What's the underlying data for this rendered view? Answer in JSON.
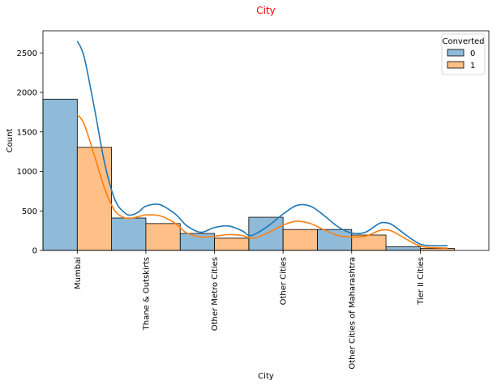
{
  "chart_data": {
    "type": "bar",
    "title": "City",
    "title_color": "#ff0000",
    "xlabel": "City",
    "ylabel": "Count",
    "categories": [
      "Mumbai",
      "Thane & Outskirts",
      "Other Metro Cities",
      "Other Cities",
      "Other Cities of Maharashtra",
      "Tier II Cities"
    ],
    "ylim": [
      0,
      2780
    ],
    "yticks": [
      0,
      500,
      1000,
      1500,
      2000,
      2500
    ],
    "series": [
      {
        "name": "0",
        "color": "#1f77b4",
        "fill": "#8fbbd9",
        "values": [
          1915,
          410,
          215,
          420,
          265,
          45
        ]
      },
      {
        "name": "1",
        "color": "#ff7f0e",
        "fill": "#ffbf86",
        "values": [
          1305,
          340,
          155,
          265,
          195,
          25
        ]
      }
    ],
    "kde": [
      {
        "series": "0",
        "x": [
          0.0,
          0.1,
          0.25,
          0.4,
          0.55,
          0.7,
          0.8,
          0.9,
          1.0,
          1.2,
          1.4,
          1.5,
          1.6,
          1.8,
          2.0,
          2.2,
          2.4,
          2.5,
          2.6,
          2.8,
          3.0,
          3.2,
          3.4,
          3.6,
          3.8,
          4.0,
          4.2,
          4.4,
          4.5,
          4.6,
          4.8,
          5.0,
          5.2,
          5.4
        ],
        "y": [
          2650,
          2450,
          1800,
          1100,
          640,
          470,
          450,
          490,
          560,
          580,
          480,
          400,
          310,
          230,
          290,
          310,
          250,
          190,
          210,
          320,
          460,
          570,
          560,
          440,
          300,
          220,
          230,
          340,
          350,
          320,
          190,
          80,
          60,
          60
        ]
      },
      {
        "series": "1",
        "x": [
          0.0,
          0.1,
          0.25,
          0.4,
          0.55,
          0.7,
          0.8,
          0.9,
          1.0,
          1.2,
          1.4,
          1.5,
          1.6,
          1.8,
          2.0,
          2.2,
          2.4,
          2.5,
          2.6,
          2.8,
          3.0,
          3.2,
          3.4,
          3.6,
          3.8,
          4.0,
          4.2,
          4.4,
          4.5,
          4.6,
          4.8,
          5.0,
          5.2,
          5.4
        ],
        "y": [
          1720,
          1600,
          1200,
          780,
          500,
          410,
          410,
          430,
          450,
          440,
          360,
          290,
          220,
          170,
          180,
          200,
          190,
          160,
          160,
          230,
          320,
          370,
          340,
          260,
          190,
          170,
          180,
          250,
          260,
          240,
          140,
          55,
          35,
          30
        ]
      }
    ],
    "legend": {
      "title": "Converted",
      "position": "top-right"
    },
    "grid": false
  }
}
